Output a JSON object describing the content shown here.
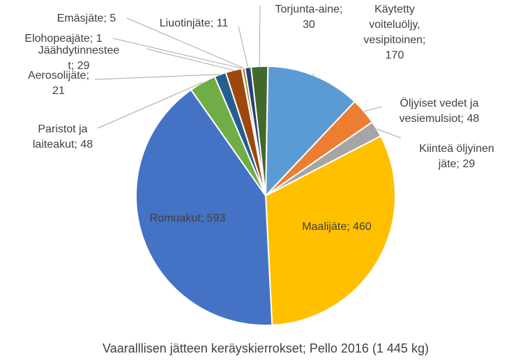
{
  "chart_data": {
    "type": "pie",
    "title": "Vaaralllisen jätteen keräyskierrokset; Pello 2016 (1 445 kg)",
    "slices": [
      {
        "label": "Käytetty voiteluöljy, vesipitoinen",
        "value": 170,
        "color": "#5B9BD5",
        "text_lines": [
          "Käytetty",
          "voiteluöljy,",
          "vesipitoinen;",
          "170"
        ]
      },
      {
        "label": "Öljyiset vedet ja vesiemulsiot",
        "value": 48,
        "color": "#ED7D31",
        "text_lines": [
          "Öljyiset vedet ja",
          "vesiemulsiot; 48"
        ]
      },
      {
        "label": "Kiinteä öljyinen jäte",
        "value": 29,
        "color": "#A5A5A5",
        "text_lines": [
          "Kiinteä öljyinen",
          "jäte; 29"
        ]
      },
      {
        "label": "Maalijäte",
        "value": 460,
        "color": "#FFC000",
        "text_lines": [
          "Maalijäte; 460"
        ]
      },
      {
        "label": "Romuakut",
        "value": 593,
        "color": "#4472C4",
        "text_lines": [
          "Romuakut; 593"
        ]
      },
      {
        "label": "Paristot ja laiteakut",
        "value": 48,
        "color": "#70AD47",
        "text_lines": [
          "Paristot ja",
          "laiteakut; 48"
        ]
      },
      {
        "label": "Aerosolijäte",
        "value": 21,
        "color": "#255E91",
        "text_lines": [
          "Aerosolijäte;",
          "21"
        ]
      },
      {
        "label": "Jäähdytinnesteet",
        "value": 29,
        "color": "#9E480E",
        "text_lines": [
          "Jäähdytinnestee",
          "t; 29"
        ]
      },
      {
        "label": "Elohopeajäte",
        "value": 1,
        "color": "#636363",
        "text_lines": [
          "Elohopeajäte; 1"
        ]
      },
      {
        "label": "Emäsjäte",
        "value": 5,
        "color": "#997300",
        "text_lines": [
          "Emäsjäte; 5"
        ]
      },
      {
        "label": "Liuotinjäte",
        "value": 11,
        "color": "#264478",
        "text_lines": [
          "Liuotinjäte; 11"
        ]
      },
      {
        "label": "Torjunta-aine",
        "value": 30,
        "color": "#43682B",
        "text_lines": [
          "Torjunta-aine;",
          "30"
        ]
      }
    ]
  }
}
